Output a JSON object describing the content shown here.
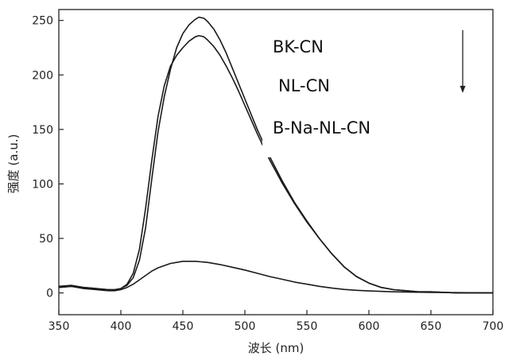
{
  "chart_data": {
    "type": "line",
    "title": "",
    "xlabel": "波长 (nm)",
    "ylabel": "强度 (a.u.)",
    "xlim": [
      350,
      700
    ],
    "ylim": [
      -20,
      260
    ],
    "xticks": [
      350,
      400,
      450,
      500,
      550,
      600,
      650,
      700
    ],
    "yticks": [
      0,
      50,
      100,
      150,
      200,
      250
    ],
    "grid": false,
    "legend": {
      "entries": [
        "BK-CN",
        "NL-CN",
        "B-Na-NL-CN"
      ],
      "placement": "top-right",
      "arrow": "down"
    },
    "series": [
      {
        "name": "BK-CN",
        "points": [
          [
            350,
            6
          ],
          [
            360,
            7
          ],
          [
            370,
            5
          ],
          [
            380,
            4
          ],
          [
            390,
            3
          ],
          [
            395,
            3
          ],
          [
            400,
            4
          ],
          [
            405,
            7
          ],
          [
            410,
            14
          ],
          [
            415,
            30
          ],
          [
            420,
            60
          ],
          [
            425,
            105
          ],
          [
            430,
            148
          ],
          [
            435,
            180
          ],
          [
            440,
            205
          ],
          [
            445,
            225
          ],
          [
            450,
            238
          ],
          [
            455,
            246
          ],
          [
            460,
            251
          ],
          [
            463,
            253
          ],
          [
            467,
            252
          ],
          [
            470,
            249
          ],
          [
            475,
            242
          ],
          [
            480,
            232
          ],
          [
            485,
            220
          ],
          [
            490,
            206
          ],
          [
            495,
            192
          ],
          [
            500,
            178
          ],
          [
            510,
            150
          ],
          [
            520,
            125
          ],
          [
            530,
            103
          ],
          [
            540,
            83
          ],
          [
            550,
            66
          ],
          [
            560,
            50
          ],
          [
            570,
            36
          ],
          [
            580,
            24
          ],
          [
            590,
            15
          ],
          [
            600,
            9
          ],
          [
            610,
            5
          ],
          [
            620,
            3
          ],
          [
            630,
            2
          ],
          [
            640,
            1
          ],
          [
            650,
            1
          ],
          [
            670,
            0
          ],
          [
            700,
            0
          ]
        ]
      },
      {
        "name": "NL-CN",
        "points": [
          [
            350,
            5
          ],
          [
            360,
            6
          ],
          [
            370,
            5
          ],
          [
            380,
            4
          ],
          [
            390,
            3
          ],
          [
            395,
            3
          ],
          [
            400,
            4
          ],
          [
            405,
            8
          ],
          [
            410,
            18
          ],
          [
            415,
            40
          ],
          [
            420,
            78
          ],
          [
            425,
            122
          ],
          [
            430,
            162
          ],
          [
            435,
            190
          ],
          [
            440,
            208
          ],
          [
            445,
            218
          ],
          [
            450,
            225
          ],
          [
            455,
            231
          ],
          [
            460,
            235
          ],
          [
            463,
            236
          ],
          [
            467,
            235
          ],
          [
            470,
            232
          ],
          [
            475,
            226
          ],
          [
            480,
            218
          ],
          [
            485,
            208
          ],
          [
            490,
            197
          ],
          [
            495,
            185
          ],
          [
            500,
            172
          ],
          [
            510,
            146
          ],
          [
            520,
            122
          ],
          [
            530,
            101
          ],
          [
            540,
            82
          ],
          [
            550,
            65
          ],
          [
            560,
            50
          ],
          [
            570,
            36
          ],
          [
            580,
            24
          ],
          [
            590,
            15
          ],
          [
            600,
            9
          ],
          [
            610,
            5
          ],
          [
            620,
            3
          ],
          [
            630,
            2
          ],
          [
            640,
            1
          ],
          [
            650,
            1
          ],
          [
            670,
            0
          ],
          [
            700,
            0
          ]
        ]
      },
      {
        "name": "B-Na-NL-CN",
        "points": [
          [
            350,
            5
          ],
          [
            360,
            6
          ],
          [
            370,
            4
          ],
          [
            380,
            3
          ],
          [
            390,
            2
          ],
          [
            395,
            2
          ],
          [
            400,
            3
          ],
          [
            405,
            5
          ],
          [
            410,
            8
          ],
          [
            415,
            12
          ],
          [
            420,
            16
          ],
          [
            425,
            20
          ],
          [
            430,
            23
          ],
          [
            435,
            25
          ],
          [
            440,
            27
          ],
          [
            445,
            28
          ],
          [
            450,
            29
          ],
          [
            455,
            29
          ],
          [
            460,
            29
          ],
          [
            465,
            28.5
          ],
          [
            470,
            28
          ],
          [
            480,
            26
          ],
          [
            490,
            23.5
          ],
          [
            500,
            21
          ],
          [
            510,
            18
          ],
          [
            520,
            15
          ],
          [
            530,
            12.5
          ],
          [
            540,
            10
          ],
          [
            550,
            8
          ],
          [
            560,
            6
          ],
          [
            570,
            4.5
          ],
          [
            580,
            3.2
          ],
          [
            590,
            2.4
          ],
          [
            600,
            1.8
          ],
          [
            620,
            1
          ],
          [
            650,
            0.5
          ],
          [
            700,
            0
          ]
        ]
      }
    ],
    "line_color": "#1a1a1a"
  }
}
